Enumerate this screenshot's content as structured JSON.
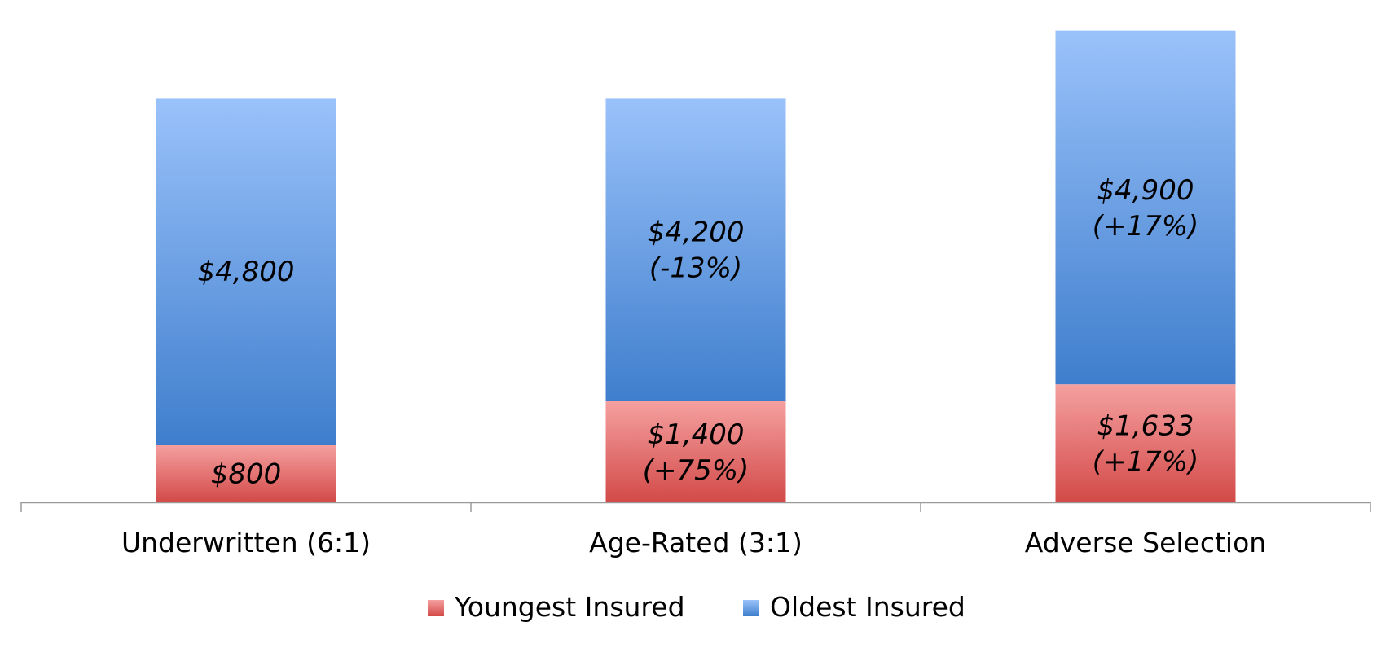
{
  "chart_data": {
    "type": "bar",
    "stacked": true,
    "categories": [
      "Underwritten (6:1)",
      "Age-Rated (3:1)",
      "Adverse Selection"
    ],
    "series": [
      {
        "name": "Youngest Insured",
        "values": [
          800,
          1400,
          1633
        ],
        "labels": [
          [
            "$800"
          ],
          [
            "$1,400",
            "(+75%)"
          ],
          [
            "$1,633",
            "(+17%)"
          ]
        ],
        "color_top": "#f5a0a0",
        "color_bottom": "#d24a48"
      },
      {
        "name": "Oldest Insured",
        "values": [
          4800,
          4200,
          4900
        ],
        "labels": [
          [
            "$4,800"
          ],
          [
            "$4,200",
            "(-13%)"
          ],
          [
            "$4,900",
            "(+17%)"
          ]
        ],
        "color_top": "#9ac2fa",
        "color_bottom": "#3f7ecd"
      }
    ],
    "ylim": [
      0,
      6800
    ],
    "grid": false,
    "legend": "bottom"
  }
}
